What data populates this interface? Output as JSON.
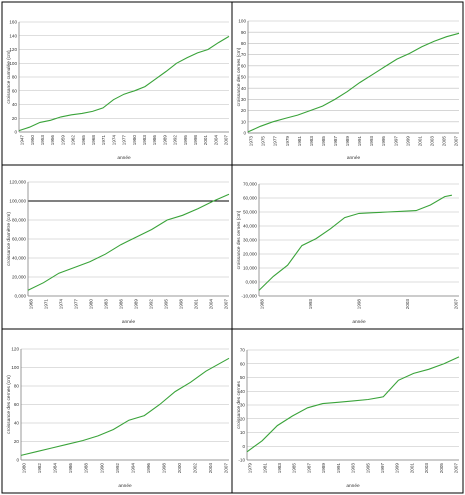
{
  "colors": {
    "series": "#3aa33a",
    "grid": "#bdbdbd",
    "border": "#000000"
  },
  "chart_data": [
    {
      "type": "line",
      "xlabel": "année",
      "ylabel": "croissance cumulée (cm)",
      "ylim": [
        0,
        160
      ],
      "yticks": [
        "0",
        "20",
        "40",
        "60",
        "80",
        "100",
        "120",
        "140",
        "160"
      ],
      "xticks": [
        "1947",
        "1950",
        "1953",
        "1956",
        "1959",
        "1962",
        "1965",
        "1968",
        "1971",
        "1974",
        "1977",
        "1980",
        "1983",
        "1986",
        "1989",
        "1992",
        "1995",
        "1998",
        "2001",
        "2004",
        "2007"
      ],
      "xlim": [
        1947,
        2007
      ],
      "grid": true,
      "refline": null,
      "series": [
        {
          "x": [
            1947,
            1950,
            1953,
            1956,
            1959,
            1962,
            1965,
            1968,
            1971,
            1974,
            1977,
            1980,
            1983,
            1986,
            1989,
            1992,
            1995,
            1998,
            2001,
            2004,
            2007
          ],
          "y": [
            2,
            7,
            14,
            17,
            22,
            25,
            27,
            30,
            35,
            47,
            55,
            60,
            66,
            77,
            88,
            100,
            108,
            115,
            120,
            130,
            139
          ]
        }
      ]
    },
    {
      "type": "line",
      "xlabel": "année",
      "ylabel": "croissance des cernes (cm)",
      "ylim": [
        0,
        100
      ],
      "yticks": [
        "0",
        "10",
        "20",
        "30",
        "40",
        "50",
        "60",
        "70",
        "80",
        "90",
        "100"
      ],
      "xticks": [
        "1973",
        "1975",
        "1977",
        "1979",
        "1981",
        "1983",
        "1985",
        "1987",
        "1989",
        "1991",
        "1993",
        "1995",
        "1997",
        "1999",
        "2001",
        "2003",
        "2005",
        "2007"
      ],
      "xlim": [
        1973,
        2007
      ],
      "grid": true,
      "refline": null,
      "series": [
        {
          "x": [
            1973,
            1975,
            1977,
            1979,
            1981,
            1983,
            1985,
            1987,
            1989,
            1991,
            1993,
            1995,
            1997,
            1999,
            2001,
            2003,
            2005,
            2007
          ],
          "y": [
            1,
            6,
            10,
            13,
            16,
            20,
            24,
            30,
            37,
            45,
            52,
            59,
            66,
            71,
            77,
            82,
            86,
            89
          ]
        }
      ]
    },
    {
      "type": "line",
      "xlabel": "année",
      "ylabel": "croissance diamètre (cm)",
      "ylim": [
        0,
        120000
      ],
      "yticks": [
        "0,000",
        "20,000",
        "40,000",
        "60,000",
        "80,000",
        "100,000",
        "120,000"
      ],
      "xticks": [
        "1968",
        "1971",
        "1974",
        "1977",
        "1980",
        "1983",
        "1986",
        "1989",
        "1992",
        "1995",
        "1998",
        "2001",
        "2004",
        "2007"
      ],
      "xlim": [
        1968,
        2007
      ],
      "grid": true,
      "refline": 100000,
      "series": [
        {
          "x": [
            1968,
            1971,
            1974,
            1977,
            1980,
            1983,
            1986,
            1989,
            1992,
            1995,
            1998,
            2001,
            2004,
            2007
          ],
          "y": [
            6000,
            14000,
            24000,
            30000,
            36000,
            44000,
            54000,
            62000,
            70000,
            80000,
            85000,
            92000,
            100000,
            107000
          ]
        }
      ]
    },
    {
      "type": "line",
      "xlabel": "année",
      "ylabel": "croissance des cernes (cm)",
      "ylim": [
        -10000,
        70000
      ],
      "yticks": [
        "-10,000",
        "0,000",
        "10,000",
        "20,000",
        "30,000",
        "40,000",
        "50,000",
        "60,000",
        "70,000"
      ],
      "xticks": [
        "1988",
        "1993",
        "1998",
        "2003",
        "2007"
      ],
      "xlim": [
        1980,
        2008
      ],
      "grid": true,
      "refline": null,
      "series": [
        {
          "x": [
            1980,
            1982,
            1984,
            1986,
            1988,
            1990,
            1992,
            1994,
            1996,
            1998,
            2000,
            2002,
            2004,
            2006,
            2007
          ],
          "y": [
            -6000,
            4000,
            12000,
            26000,
            31000,
            38000,
            46000,
            49000,
            49500,
            50000,
            50500,
            51000,
            55000,
            61000,
            62000
          ]
        }
      ]
    },
    {
      "type": "line",
      "xlabel": "année",
      "ylabel": "croissance des cernes (cm)",
      "ylim": [
        0,
        120
      ],
      "yticks": [
        "0",
        "20",
        "40",
        "60",
        "80",
        "100",
        "120"
      ],
      "xticks": [
        "1980",
        "1982",
        "1984",
        "1986",
        "1988",
        "1990",
        "1992",
        "1994",
        "1996",
        "1998",
        "2000",
        "2002",
        "2004",
        "2007"
      ],
      "xlim": [
        1980,
        2007
      ],
      "grid": true,
      "refline": null,
      "series": [
        {
          "x": [
            1980,
            1982,
            1984,
            1986,
            1988,
            1990,
            1992,
            1994,
            1996,
            1998,
            2000,
            2002,
            2004,
            2007
          ],
          "y": [
            5,
            9,
            13,
            17,
            21,
            26,
            33,
            43,
            48,
            60,
            74,
            84,
            96,
            110
          ]
        }
      ]
    },
    {
      "type": "line",
      "xlabel": "année",
      "ylabel": "croissance des cernes",
      "ylim": [
        -10,
        70
      ],
      "yticks": [
        "-10",
        "0",
        "10",
        "20",
        "30",
        "40",
        "50",
        "60",
        "70"
      ],
      "xticks": [
        "1979",
        "1981",
        "1983",
        "1985",
        "1987",
        "1989",
        "1991",
        "1993",
        "1995",
        "1997",
        "1999",
        "2001",
        "2003",
        "2005",
        "2007"
      ],
      "xlim": [
        1979,
        2007
      ],
      "grid": true,
      "refline": null,
      "series": [
        {
          "x": [
            1979,
            1981,
            1983,
            1985,
            1987,
            1989,
            1991,
            1993,
            1995,
            1997,
            1999,
            2001,
            2003,
            2005,
            2007
          ],
          "y": [
            -4,
            4,
            15,
            22,
            28,
            31,
            32,
            33,
            34,
            36,
            48,
            53,
            56,
            60,
            65
          ]
        }
      ]
    }
  ]
}
